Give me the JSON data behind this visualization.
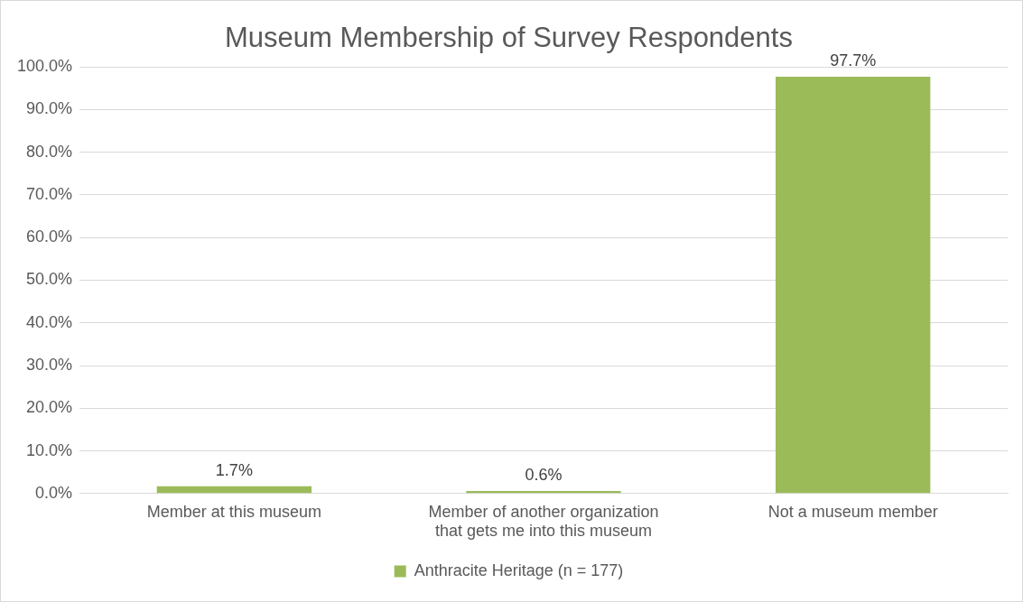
{
  "chart_data": {
    "type": "bar",
    "title": "Museum Membership of Survey Respondents",
    "categories": [
      "Member at this museum",
      "Member of another organization that gets me into this museum",
      "Not a museum member"
    ],
    "series": [
      {
        "name": "Anthracite Heritage (n = 177)",
        "color": "#9bbb59",
        "values": [
          1.7,
          0.6,
          97.7
        ],
        "value_labels": [
          "1.7%",
          "0.6%",
          "97.7%"
        ]
      }
    ],
    "ylim": [
      0,
      100
    ],
    "yticks": [
      {
        "value": 0,
        "label": "0.0%"
      },
      {
        "value": 10,
        "label": "10.0%"
      },
      {
        "value": 20,
        "label": "20.0%"
      },
      {
        "value": 30,
        "label": "30.0%"
      },
      {
        "value": 40,
        "label": "40.0%"
      },
      {
        "value": 50,
        "label": "50.0%"
      },
      {
        "value": 60,
        "label": "60.0%"
      },
      {
        "value": 70,
        "label": "70.0%"
      },
      {
        "value": 80,
        "label": "80.0%"
      },
      {
        "value": 90,
        "label": "90.0%"
      },
      {
        "value": 100,
        "label": "100.0%"
      }
    ],
    "grid": "y",
    "legend": "bottom"
  }
}
